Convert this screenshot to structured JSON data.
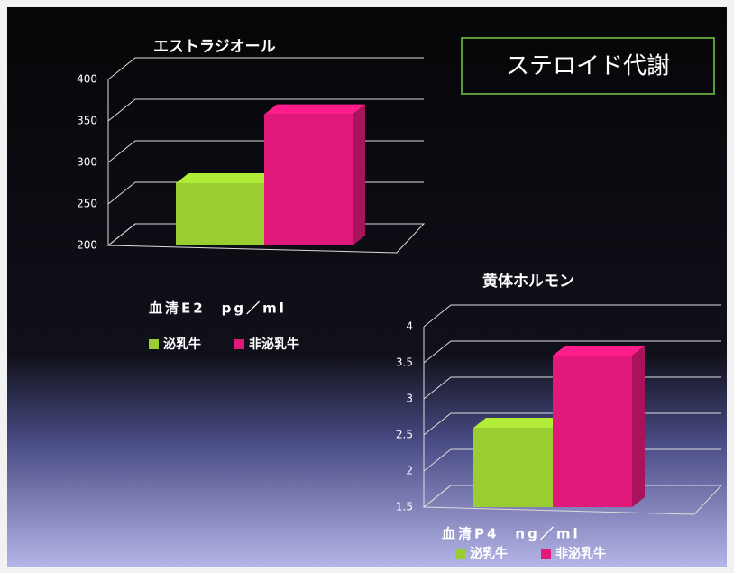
{
  "title": "ステロイド代謝",
  "chart_data": [
    {
      "type": "bar3d",
      "title": "エストラジオール",
      "xlabel": "血清E2　pg／ml",
      "series": [
        {
          "name": "泌乳牛",
          "color": "#9acd32",
          "values": [
            275
          ]
        },
        {
          "name": "非泌乳牛",
          "color": "#e0197a",
          "values": [
            358
          ]
        }
      ],
      "ylim": [
        200,
        400
      ],
      "yticks": [
        200,
        250,
        300,
        350,
        400
      ],
      "grid": true
    },
    {
      "type": "bar3d",
      "title": "黄体ホルモン",
      "xlabel": "血清P4　ng／ml",
      "series": [
        {
          "name": "泌乳牛",
          "color": "#9acd32",
          "values": [
            2.6
          ]
        },
        {
          "name": "非泌乳牛",
          "color": "#e0197a",
          "values": [
            3.6
          ]
        }
      ],
      "ylim": [
        1.5,
        4
      ],
      "yticks": [
        1.5,
        2,
        2.5,
        3,
        3.5,
        4
      ],
      "grid": true
    }
  ]
}
